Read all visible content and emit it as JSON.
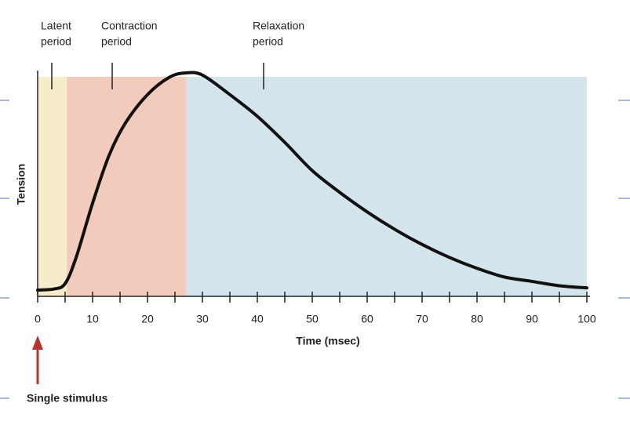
{
  "chart_data": {
    "type": "line",
    "xlabel": "Time (msec)",
    "ylabel": "Tension",
    "xlim": [
      0,
      100
    ],
    "xticks": [
      0,
      10,
      20,
      30,
      40,
      50,
      60,
      70,
      80,
      90,
      100
    ],
    "xminorticks": [
      5,
      15,
      25,
      35,
      45,
      55,
      65,
      75,
      85,
      95
    ],
    "ylim": [
      0,
      100
    ],
    "regions": [
      {
        "label": [
          "Latent",
          "period"
        ],
        "start": 0,
        "end": 5.3,
        "color": "#f7ecc9"
      },
      {
        "label": [
          "Contraction",
          "period"
        ],
        "start": 5.3,
        "end": 27,
        "color": "#f2cbbd"
      },
      {
        "label": [
          "Relaxation",
          "period"
        ],
        "start": 27,
        "end": 100,
        "color": "#d3e4ea"
      }
    ],
    "stimulus": {
      "label": "Single stimulus",
      "x": 0,
      "color": "#b8312f"
    },
    "series": [
      {
        "color": "#111111",
        "x": [
          0,
          3,
          5,
          7,
          10,
          13,
          16,
          20,
          24,
          27,
          30,
          35,
          40,
          45,
          50,
          55,
          60,
          65,
          70,
          75,
          80,
          85,
          90,
          95,
          100
        ],
        "values": [
          0,
          0.5,
          3,
          15,
          40,
          62,
          77,
          90,
          98,
          100,
          99,
          90,
          80,
          68,
          55,
          45,
          36,
          28,
          21,
          15,
          10,
          6,
          4,
          2,
          1
        ]
      }
    ]
  }
}
